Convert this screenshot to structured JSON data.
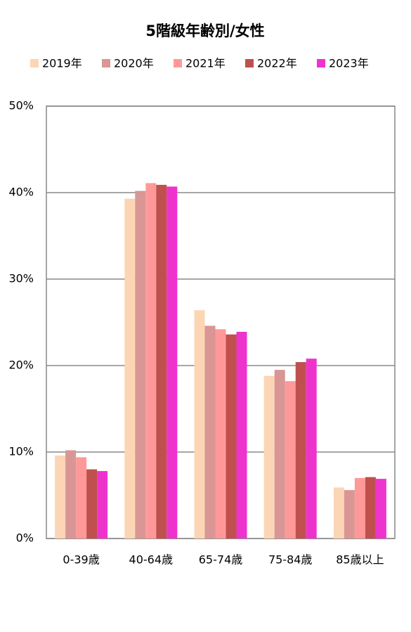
{
  "chart_data": {
    "type": "bar",
    "title": "5階級年齢別/女性",
    "categories": [
      "0-39歳",
      "40-64歳",
      "65-74歳",
      "75-84歳",
      "85歳以上"
    ],
    "series": [
      {
        "name": "2019年",
        "color": "#fcd5b5",
        "values": [
          9.6,
          39.3,
          26.4,
          18.8,
          5.9
        ]
      },
      {
        "name": "2020年",
        "color": "#d99694",
        "values": [
          10.2,
          40.2,
          24.6,
          19.5,
          5.6
        ]
      },
      {
        "name": "2021年",
        "color": "#ff9999",
        "values": [
          9.4,
          41.1,
          24.2,
          18.2,
          7.0
        ]
      },
      {
        "name": "2022年",
        "color": "#c0504d",
        "values": [
          8.0,
          40.9,
          23.6,
          20.4,
          7.1
        ]
      },
      {
        "name": "2023年",
        "color": "#ee33cc",
        "values": [
          7.8,
          40.7,
          23.9,
          20.8,
          6.9
        ]
      }
    ],
    "ylim": [
      0,
      50
    ],
    "yticks": [
      {
        "value": 0,
        "label": "0%"
      },
      {
        "value": 10,
        "label": "10%"
      },
      {
        "value": 20,
        "label": "20%"
      },
      {
        "value": 30,
        "label": "30%"
      },
      {
        "value": 40,
        "label": "40%"
      },
      {
        "value": 50,
        "label": "50%"
      }
    ],
    "grid": true,
    "legend": "top"
  }
}
